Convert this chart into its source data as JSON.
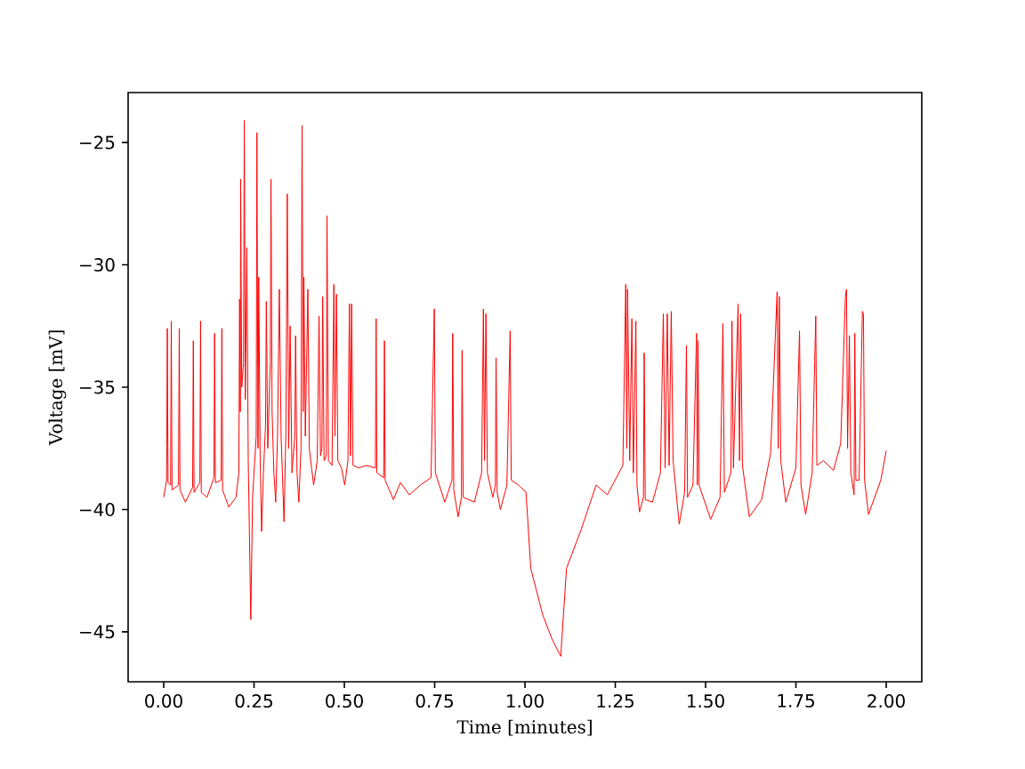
{
  "chart_data": {
    "type": "line",
    "xlabel": "Time [minutes]",
    "ylabel": "Voltage [mV]",
    "xlim": [
      -0.0985,
      2.0985
    ],
    "ylim": [
      -47.04,
      -22.96
    ],
    "xticks": [
      {
        "value": 0,
        "label": "0.00"
      },
      {
        "value": 0.25,
        "label": "0.25"
      },
      {
        "value": 0.5,
        "label": "0.50"
      },
      {
        "value": 0.75,
        "label": "0.75"
      },
      {
        "value": 1,
        "label": "1.00"
      },
      {
        "value": 1.25,
        "label": "1.25"
      },
      {
        "value": 1.5,
        "label": "1.50"
      },
      {
        "value": 1.75,
        "label": "1.75"
      },
      {
        "value": 2,
        "label": "2.00"
      }
    ],
    "yticks": [
      {
        "value": -45,
        "label": "−45"
      },
      {
        "value": -40,
        "label": "−40"
      },
      {
        "value": -35,
        "label": "−35"
      },
      {
        "value": -30,
        "label": "−30"
      },
      {
        "value": -25,
        "label": "−25"
      }
    ],
    "series": [
      {
        "color": "#ff0000",
        "x": [
          0.0,
          0.008,
          0.01,
          0.012,
          0.019,
          0.021,
          0.023,
          0.041,
          0.043,
          0.045,
          0.06,
          0.08,
          0.082,
          0.084,
          0.1,
          0.102,
          0.104,
          0.12,
          0.139,
          0.141,
          0.143,
          0.159,
          0.161,
          0.163,
          0.18,
          0.2,
          0.208,
          0.21,
          0.212,
          0.213,
          0.216,
          0.221,
          0.223,
          0.226,
          0.23,
          0.234,
          0.241,
          0.246,
          0.256,
          0.258,
          0.261,
          0.263,
          0.267,
          0.271,
          0.276,
          0.282,
          0.284,
          0.288,
          0.295,
          0.297,
          0.3,
          0.305,
          0.31,
          0.315,
          0.32,
          0.325,
          0.333,
          0.338,
          0.342,
          0.346,
          0.35,
          0.355,
          0.363,
          0.365,
          0.369,
          0.374,
          0.38,
          0.383,
          0.386,
          0.388,
          0.392,
          0.399,
          0.403,
          0.415,
          0.425,
          0.43,
          0.434,
          0.438,
          0.44,
          0.444,
          0.45,
          0.452,
          0.456,
          0.466,
          0.471,
          0.474,
          0.478,
          0.482,
          0.492,
          0.501,
          0.51,
          0.514,
          0.517,
          0.52,
          0.524,
          0.54,
          0.56,
          0.586,
          0.588,
          0.59,
          0.609,
          0.611,
          0.613,
          0.636,
          0.655,
          0.68,
          0.71,
          0.74,
          0.749,
          0.752,
          0.778,
          0.798,
          0.8,
          0.803,
          0.815,
          0.824,
          0.826,
          0.829,
          0.86,
          0.88,
          0.885,
          0.888,
          0.892,
          0.896,
          0.911,
          0.918,
          0.92,
          0.923,
          0.932,
          0.95,
          0.959,
          0.962,
          0.982,
          1.003,
          1.016,
          1.049,
          1.075,
          1.099,
          1.115,
          1.156,
          1.197,
          1.228,
          1.271,
          1.279,
          1.282,
          1.284,
          1.29,
          1.296,
          1.3,
          1.307,
          1.31,
          1.317,
          1.328,
          1.33,
          1.333,
          1.353,
          1.375,
          1.383,
          1.388,
          1.394,
          1.399,
          1.405,
          1.41,
          1.427,
          1.442,
          1.447,
          1.45,
          1.465,
          1.475,
          1.477,
          1.479,
          1.482,
          1.514,
          1.54,
          1.548,
          1.552,
          1.57,
          1.573,
          1.577,
          1.59,
          1.594,
          1.597,
          1.602,
          1.621,
          1.655,
          1.68,
          1.698,
          1.701,
          1.704,
          1.708,
          1.722,
          1.75,
          1.76,
          1.764,
          1.777,
          1.795,
          1.805,
          1.808,
          1.826,
          1.854,
          1.874,
          1.887,
          1.89,
          1.893,
          1.898,
          1.902,
          1.911,
          1.913,
          1.916,
          1.925,
          1.934,
          1.937,
          1.94,
          1.951,
          1.985,
          2.0
        ],
        "values": [
          -39.5,
          -38.8,
          -32.6,
          -38.9,
          -39.0,
          -32.3,
          -39.2,
          -39.0,
          -32.6,
          -39.2,
          -39.7,
          -39.1,
          -33.1,
          -39.3,
          -38.9,
          -32.3,
          -39.3,
          -39.5,
          -38.7,
          -32.8,
          -38.9,
          -38.8,
          -32.6,
          -39.2,
          -39.9,
          -39.5,
          -38.5,
          -31.4,
          -36.0,
          -26.5,
          -35.0,
          -34.0,
          -24.1,
          -35.5,
          -29.3,
          -38.0,
          -44.5,
          -39.5,
          -37.0,
          -24.6,
          -37.5,
          -30.5,
          -38.0,
          -40.9,
          -38.5,
          -36.5,
          -31.5,
          -37.5,
          -34.0,
          -26.5,
          -36.0,
          -38.5,
          -39.7,
          -37.0,
          -31.0,
          -37.0,
          -40.5,
          -37.0,
          -27.1,
          -37.5,
          -32.5,
          -38.5,
          -37.0,
          -32.9,
          -38.5,
          -39.7,
          -37.5,
          -24.3,
          -36.0,
          -30.5,
          -37.0,
          -31.0,
          -37.5,
          -39.0,
          -38.0,
          -32.1,
          -37.8,
          -37.5,
          -31.3,
          -38.0,
          -37.8,
          -28.0,
          -38.0,
          -38.2,
          -30.8,
          -37.0,
          -31.2,
          -38.0,
          -38.3,
          -39.0,
          -38.0,
          -31.6,
          -37.8,
          -31.6,
          -38.2,
          -38.3,
          -38.2,
          -38.3,
          -32.2,
          -38.5,
          -38.7,
          -33.1,
          -38.8,
          -39.6,
          -38.9,
          -39.4,
          -39.0,
          -38.7,
          -31.8,
          -38.5,
          -39.7,
          -38.8,
          -32.8,
          -39.2,
          -40.3,
          -39.5,
          -33.5,
          -39.5,
          -39.7,
          -38.5,
          -31.8,
          -38.0,
          -32.0,
          -38.5,
          -39.5,
          -39.0,
          -33.8,
          -39.3,
          -40.0,
          -39.0,
          -32.7,
          -38.8,
          -39.0,
          -39.3,
          -42.4,
          -44.3,
          -45.3,
          -46.0,
          -42.4,
          -40.8,
          -39.0,
          -39.4,
          -38.2,
          -30.8,
          -37.5,
          -31.0,
          -38.0,
          -32.2,
          -38.5,
          -32.3,
          -39.0,
          -40.1,
          -39.5,
          -33.6,
          -39.6,
          -39.7,
          -38.5,
          -32.0,
          -38.3,
          -32.0,
          -38.2,
          -31.9,
          -38.0,
          -40.6,
          -39.3,
          -33.3,
          -39.5,
          -39.0,
          -32.8,
          -39.0,
          -33.1,
          -39.0,
          -40.4,
          -39.5,
          -32.4,
          -39.3,
          -38.5,
          -32.3,
          -38.3,
          -31.6,
          -38.0,
          -32.0,
          -38.2,
          -40.3,
          -39.6,
          -37.7,
          -31.1,
          -37.5,
          -31.3,
          -38.0,
          -39.7,
          -38.3,
          -32.7,
          -39.0,
          -40.2,
          -38.5,
          -32.1,
          -38.2,
          -38.0,
          -38.4,
          -37.3,
          -31.3,
          -31.0,
          -37.5,
          -32.9,
          -38.5,
          -39.4,
          -32.8,
          -38.8,
          -38.8,
          -31.9,
          -32.0,
          -38.8,
          -40.2,
          -38.8,
          -37.6
        ]
      }
    ]
  }
}
